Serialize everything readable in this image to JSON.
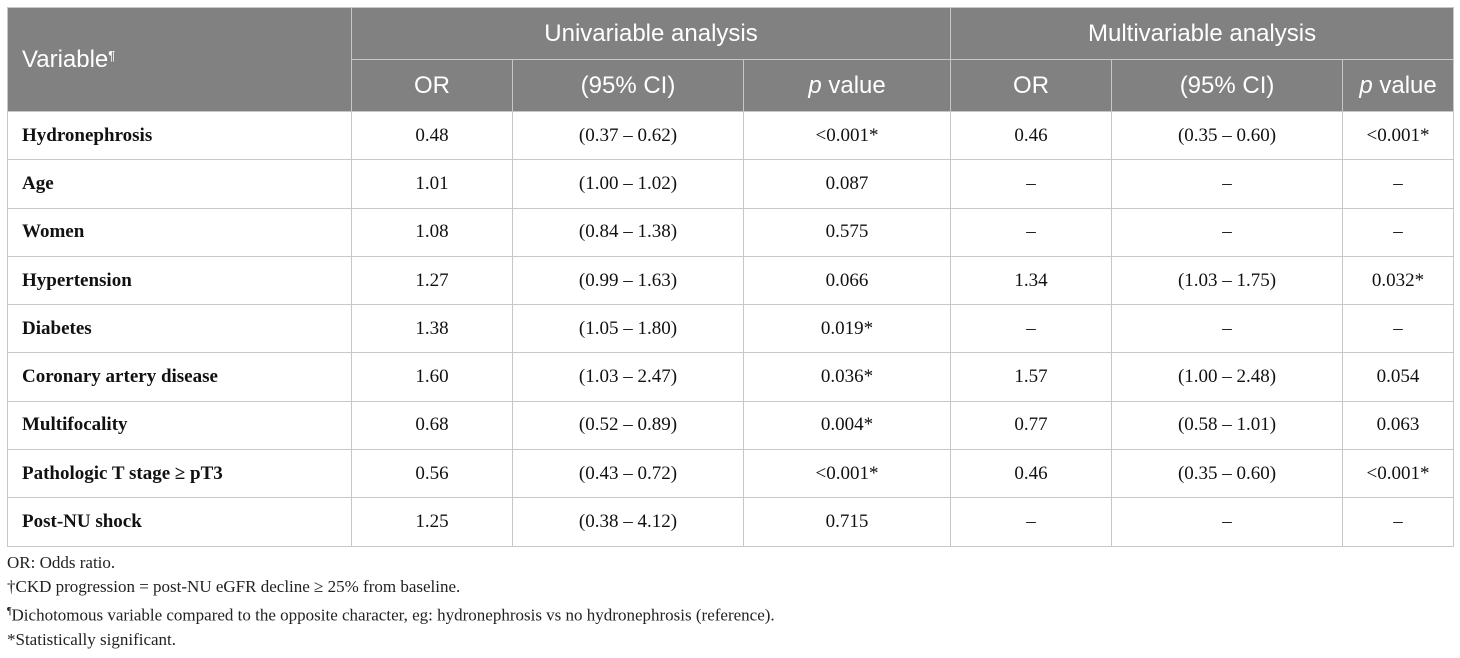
{
  "table": {
    "header": {
      "variable": "Variable",
      "variable_mark": "¶",
      "group_uni": "Univariable analysis",
      "group_multi": "Multivariable analysis",
      "col_or": "OR",
      "col_ci": "(95% CI)",
      "col_p_italic": "p",
      "col_p_rest": " value"
    },
    "rows": [
      {
        "variable": "Hydronephrosis",
        "uni_or": "0.48",
        "uni_ci": "(0.37 – 0.62)",
        "uni_p": "<0.001*",
        "multi_or": "0.46",
        "multi_ci": "(0.35 – 0.60)",
        "multi_p": "<0.001*"
      },
      {
        "variable": "Age",
        "uni_or": "1.01",
        "uni_ci": "(1.00 – 1.02)",
        "uni_p": "0.087",
        "multi_or": "–",
        "multi_ci": "–",
        "multi_p": "–"
      },
      {
        "variable": "Women",
        "uni_or": "1.08",
        "uni_ci": "(0.84 – 1.38)",
        "uni_p": "0.575",
        "multi_or": "–",
        "multi_ci": "–",
        "multi_p": "–"
      },
      {
        "variable": "Hypertension",
        "uni_or": "1.27",
        "uni_ci": "(0.99 – 1.63)",
        "uni_p": "0.066",
        "multi_or": "1.34",
        "multi_ci": "(1.03 – 1.75)",
        "multi_p": "0.032*"
      },
      {
        "variable": "Diabetes",
        "uni_or": "1.38",
        "uni_ci": "(1.05 – 1.80)",
        "uni_p": "0.019*",
        "multi_or": "–",
        "multi_ci": "–",
        "multi_p": "–"
      },
      {
        "variable": "Coronary artery disease",
        "uni_or": "1.60",
        "uni_ci": "(1.03 – 2.47)",
        "uni_p": "0.036*",
        "multi_or": "1.57",
        "multi_ci": "(1.00 – 2.48)",
        "multi_p": "0.054"
      },
      {
        "variable": "Multifocality",
        "uni_or": "0.68",
        "uni_ci": "(0.52 – 0.89)",
        "uni_p": "0.004*",
        "multi_or": "0.77",
        "multi_ci": "(0.58 – 1.01)",
        "multi_p": "0.063"
      },
      {
        "variable": "Pathologic T stage ≥ pT3",
        "uni_or": "0.56",
        "uni_ci": "(0.43 – 0.72)",
        "uni_p": "<0.001*",
        "multi_or": "0.46",
        "multi_ci": "(0.35 – 0.60)",
        "multi_p": "<0.001*"
      },
      {
        "variable": "Post-NU shock",
        "uni_or": "1.25",
        "uni_ci": "(0.38 – 4.12)",
        "uni_p": "0.715",
        "multi_or": "–",
        "multi_ci": "–",
        "multi_p": "–"
      }
    ]
  },
  "footnotes": {
    "or": "OR: Odds ratio.",
    "ckd": "†CKD progression = post-NU eGFR decline ≥ 25% from baseline.",
    "dich_mark": "¶",
    "dich": "Dichotomous variable compared to the opposite character, eg: hydronephrosis vs no hydronephrosis (reference).",
    "sig": "*Statistically significant."
  },
  "colors": {
    "header_bg": "#818181",
    "header_text": "#ffffff",
    "border": "#c7c7c7"
  }
}
